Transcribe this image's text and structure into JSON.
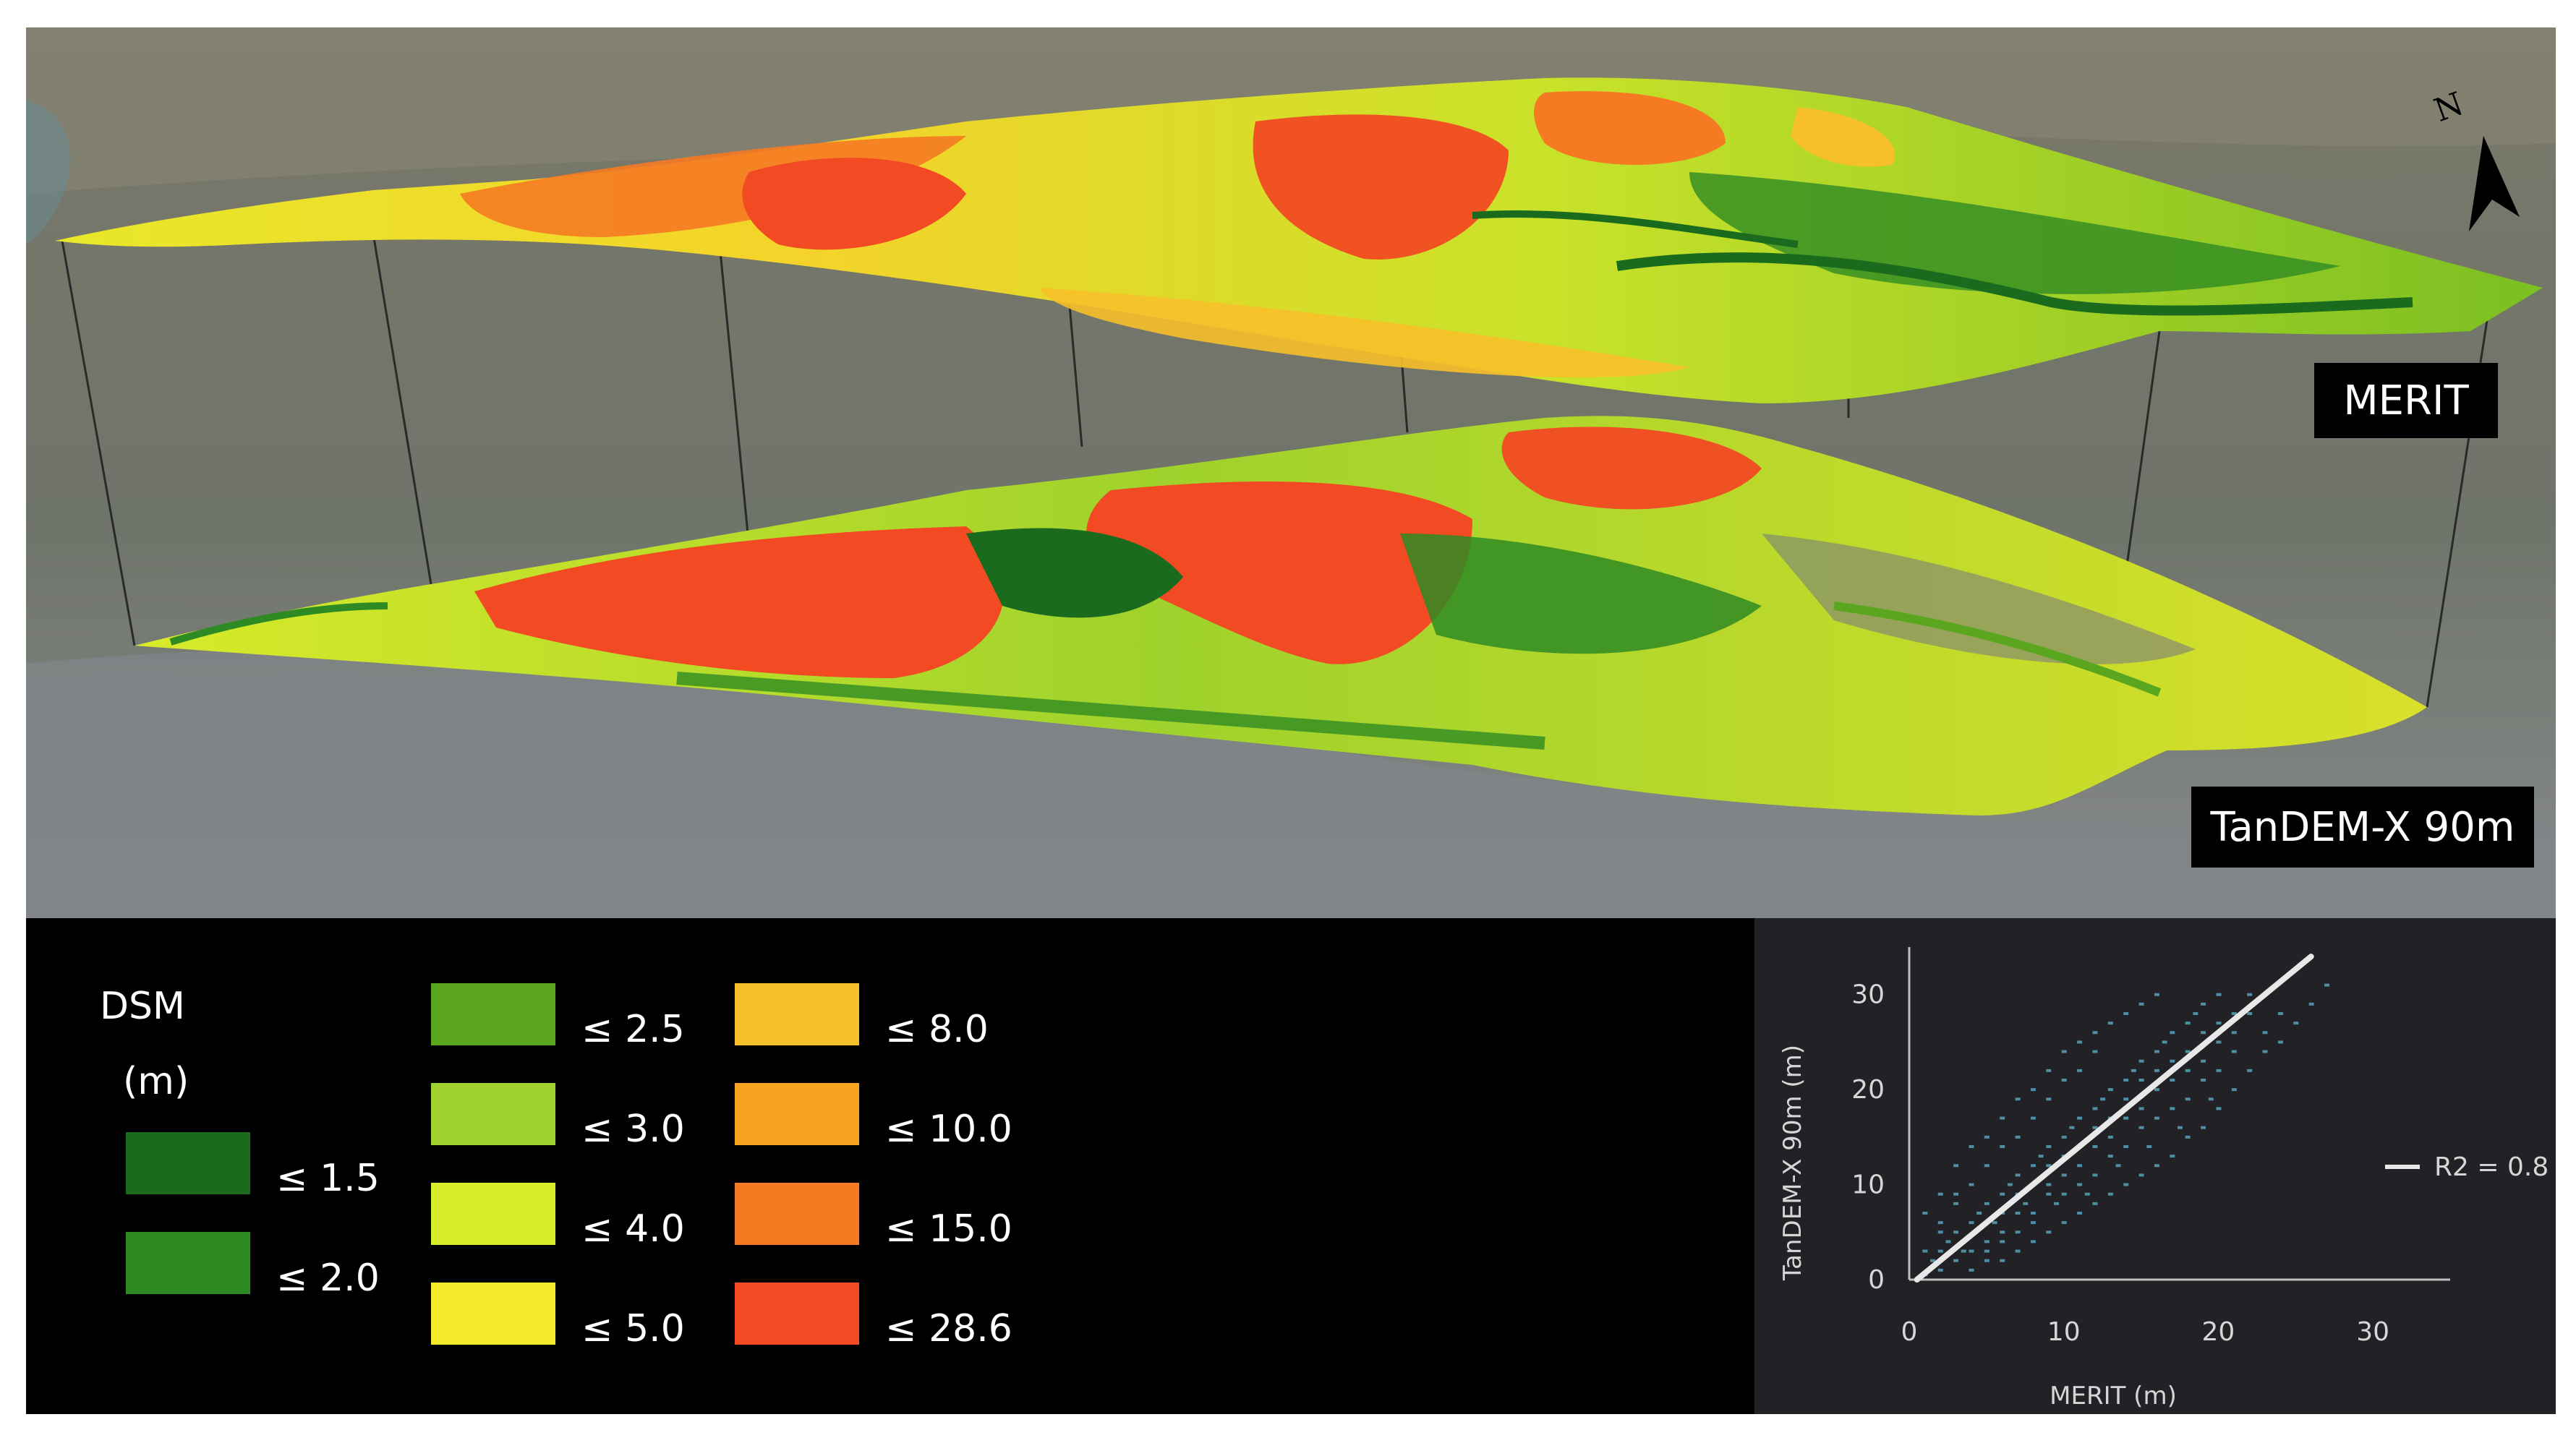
{
  "map": {
    "north_label": "N",
    "layers": [
      {
        "label": "MERIT"
      },
      {
        "label": "TanDEM-X 90m"
      }
    ]
  },
  "legend": {
    "title": "DSM",
    "unit": "(m)",
    "classes": [
      {
        "label": "≤ 1.5",
        "color": "#1b6b1e"
      },
      {
        "label": "≤ 2.0",
        "color": "#2e8b23"
      },
      {
        "label": "≤ 2.5",
        "color": "#5aa61e"
      },
      {
        "label": "≤ 3.0",
        "color": "#9fd22c"
      },
      {
        "label": "≤ 4.0",
        "color": "#d8ee2a"
      },
      {
        "label": "≤ 5.0",
        "color": "#f4ec2a"
      },
      {
        "label": "≤ 8.0",
        "color": "#f7c02a"
      },
      {
        "label": "≤ 10.0",
        "color": "#f8a320"
      },
      {
        "label": "≤ 15.0",
        "color": "#f57a22"
      },
      {
        "label": "≤ 28.6",
        "color": "#f24a22"
      }
    ]
  },
  "chart_data": {
    "type": "scatter",
    "xlabel": "MERIT (m)",
    "ylabel": "TanDEM-X 90m (m)",
    "xlim": [
      0,
      35
    ],
    "ylim": [
      0,
      35
    ],
    "xticks": [
      0,
      10,
      20,
      30
    ],
    "yticks": [
      0,
      10,
      20,
      30
    ],
    "point_color": "#5fb3cf",
    "line_color": "#e8e8e8",
    "regression": {
      "label": "R2 = 0.8",
      "x": [
        0.5,
        26
      ],
      "y": [
        0,
        34
      ]
    },
    "points": [
      [
        1,
        0.5
      ],
      [
        1.5,
        2
      ],
      [
        2,
        3
      ],
      [
        2,
        1
      ],
      [
        2.5,
        4
      ],
      [
        3,
        2
      ],
      [
        3,
        5
      ],
      [
        3.5,
        3
      ],
      [
        4,
        6
      ],
      [
        4,
        3
      ],
      [
        4.5,
        7
      ],
      [
        5,
        4
      ],
      [
        5,
        8
      ],
      [
        5.5,
        6
      ],
      [
        6,
        9
      ],
      [
        6,
        5
      ],
      [
        6.5,
        10
      ],
      [
        7,
        7
      ],
      [
        7,
        11
      ],
      [
        7.5,
        8
      ],
      [
        8,
        12
      ],
      [
        8,
        6
      ],
      [
        8.5,
        13
      ],
      [
        9,
        10
      ],
      [
        9,
        14
      ],
      [
        9.5,
        8
      ],
      [
        10,
        15
      ],
      [
        10,
        11
      ],
      [
        10.5,
        16
      ],
      [
        11,
        12
      ],
      [
        11,
        17
      ],
      [
        11.5,
        9
      ],
      [
        12,
        18
      ],
      [
        12,
        14
      ],
      [
        12.5,
        19
      ],
      [
        13,
        15
      ],
      [
        13,
        20
      ],
      [
        13.5,
        12
      ],
      [
        14,
        21
      ],
      [
        14,
        17
      ],
      [
        14.5,
        22
      ],
      [
        15,
        18
      ],
      [
        15,
        23
      ],
      [
        15.5,
        14
      ],
      [
        16,
        24
      ],
      [
        16,
        20
      ],
      [
        16.5,
        25
      ],
      [
        17,
        21
      ],
      [
        17,
        26
      ],
      [
        17.5,
        16
      ],
      [
        18,
        27
      ],
      [
        18,
        22
      ],
      [
        18.5,
        28
      ],
      [
        19,
        23
      ],
      [
        19,
        29
      ],
      [
        19.5,
        19
      ],
      [
        20,
        25
      ],
      [
        20,
        30
      ],
      [
        21,
        26
      ],
      [
        22,
        28
      ],
      [
        3,
        8
      ],
      [
        4,
        10
      ],
      [
        5,
        12
      ],
      [
        6,
        14
      ],
      [
        7,
        15
      ],
      [
        8,
        17
      ],
      [
        9,
        19
      ],
      [
        10,
        21
      ],
      [
        11,
        22
      ],
      [
        12,
        24
      ],
      [
        6,
        2
      ],
      [
        7,
        3
      ],
      [
        8,
        4
      ],
      [
        9,
        5
      ],
      [
        10,
        6
      ],
      [
        11,
        7
      ],
      [
        12,
        8
      ],
      [
        13,
        9
      ],
      [
        14,
        10
      ],
      [
        15,
        11
      ],
      [
        16,
        12
      ],
      [
        17,
        13
      ],
      [
        18,
        15
      ],
      [
        19,
        16
      ],
      [
        20,
        18
      ],
      [
        21,
        20
      ],
      [
        22,
        22
      ],
      [
        23,
        24
      ],
      [
        2,
        6
      ],
      [
        3,
        9
      ],
      [
        5,
        3
      ],
      [
        6,
        7
      ],
      [
        7,
        9
      ],
      [
        8,
        10
      ],
      [
        9,
        12
      ],
      [
        10,
        13
      ],
      [
        11,
        14
      ],
      [
        12,
        16
      ],
      [
        13,
        17
      ],
      [
        14,
        19
      ],
      [
        15,
        21
      ],
      [
        16,
        22
      ],
      [
        17,
        23
      ],
      [
        18,
        24
      ],
      [
        19,
        26
      ],
      [
        20,
        27
      ],
      [
        21,
        28
      ],
      [
        22,
        30
      ],
      [
        1,
        3
      ],
      [
        2,
        5
      ],
      [
        4,
        1
      ],
      [
        5,
        2
      ],
      [
        6,
        4
      ],
      [
        7,
        5
      ],
      [
        8,
        7
      ],
      [
        9,
        9
      ],
      [
        10,
        9
      ],
      [
        11,
        10
      ],
      [
        12,
        11
      ],
      [
        13,
        13
      ],
      [
        14,
        14
      ],
      [
        15,
        16
      ],
      [
        16,
        17
      ],
      [
        17,
        18
      ],
      [
        18,
        19
      ],
      [
        19,
        21
      ],
      [
        20,
        22
      ],
      [
        21,
        24
      ],
      [
        23,
        26
      ],
      [
        24,
        28
      ],
      [
        1,
        7
      ],
      [
        2,
        9
      ],
      [
        3,
        12
      ],
      [
        4,
        14
      ],
      [
        5,
        15
      ],
      [
        6,
        17
      ],
      [
        7,
        19
      ],
      [
        8,
        20
      ],
      [
        9,
        22
      ],
      [
        10,
        24
      ],
      [
        11,
        25
      ],
      [
        12,
        26
      ],
      [
        13,
        27
      ],
      [
        14,
        28
      ],
      [
        15,
        29
      ],
      [
        16,
        30
      ],
      [
        24,
        25
      ],
      [
        25,
        27
      ],
      [
        26,
        29
      ],
      [
        27,
        31
      ]
    ]
  }
}
